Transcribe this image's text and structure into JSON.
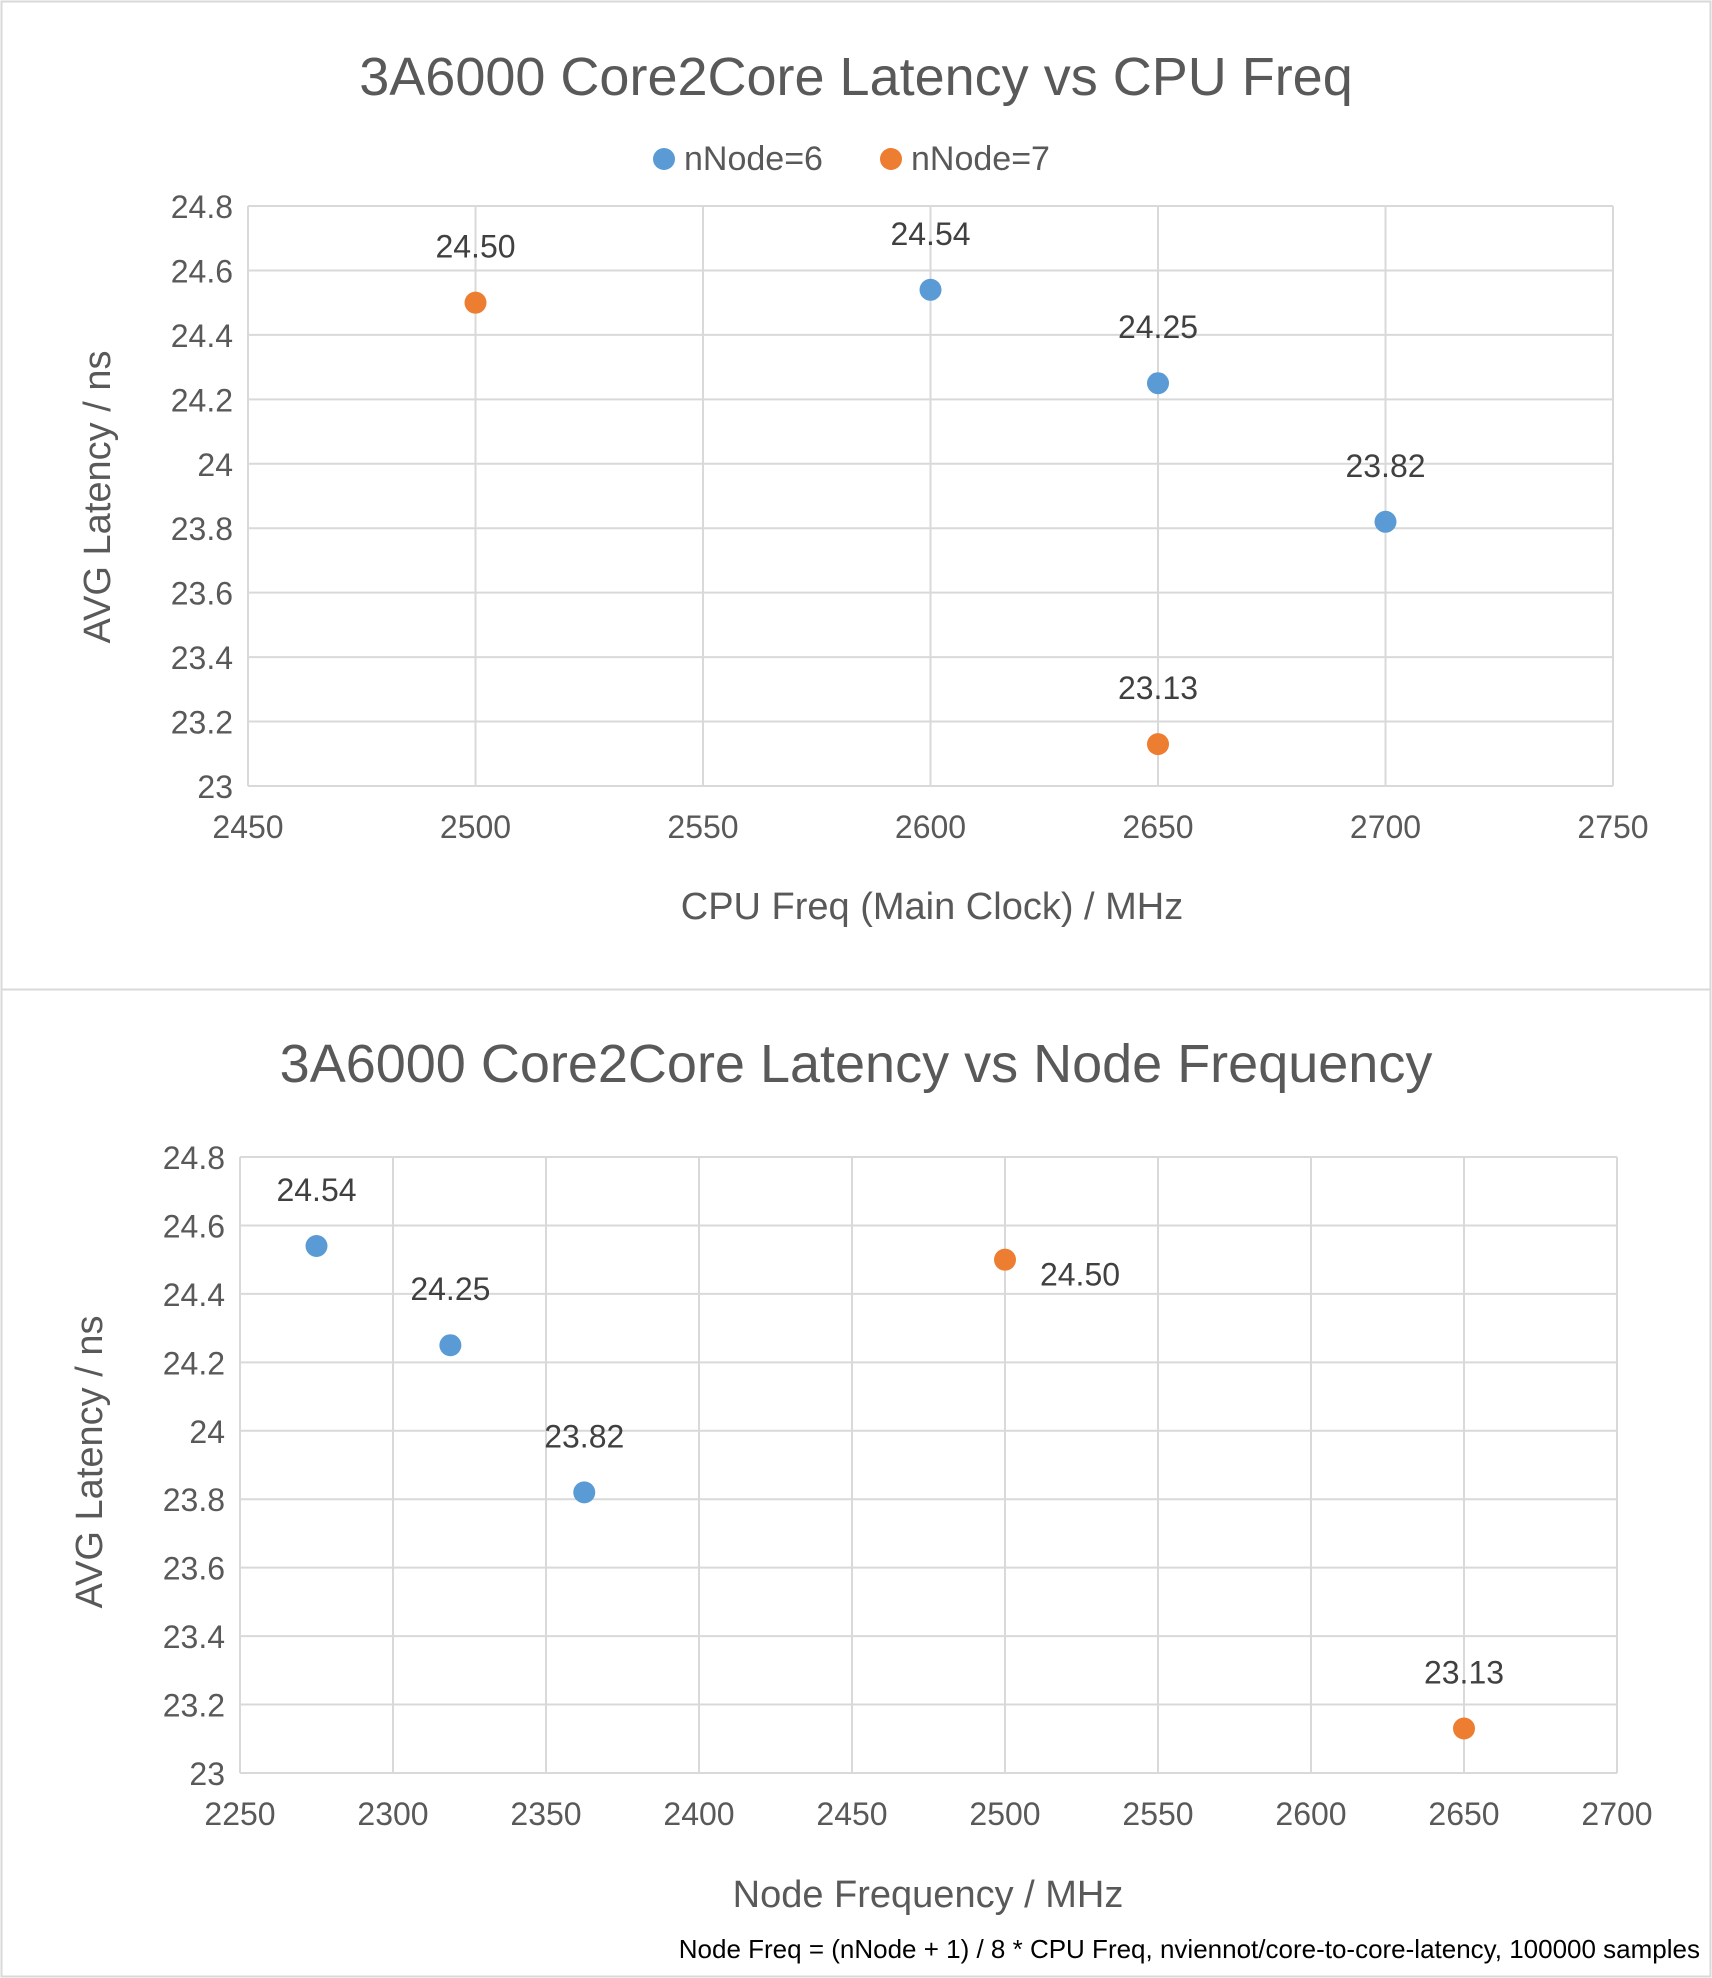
{
  "chart_data": [
    {
      "type": "scatter",
      "title": "3A6000 Core2Core Latency vs CPU Freq",
      "xlabel": "CPU Freq (Main Clock) / MHz",
      "ylabel": "AVG Latency / ns",
      "xlim": [
        2450,
        2750
      ],
      "ylim": [
        23,
        24.8
      ],
      "x_ticks": [
        "2450",
        "2500",
        "2550",
        "2600",
        "2650",
        "2700",
        "2750"
      ],
      "y_ticks": [
        "23",
        "23.2",
        "23.4",
        "23.6",
        "23.8",
        "24",
        "24.2",
        "24.4",
        "24.6",
        "24.8"
      ],
      "grid": "on",
      "legend": "top-center",
      "series": [
        {
          "name": "nNode=6",
          "color": "#5B9BD5",
          "points": [
            {
              "x": 2600,
              "y": 24.54,
              "label": "24.54"
            },
            {
              "x": 2650,
              "y": 24.25,
              "label": "24.25"
            },
            {
              "x": 2700,
              "y": 23.82,
              "label": "23.82"
            }
          ]
        },
        {
          "name": "nNode=7",
          "color": "#ED7D31",
          "points": [
            {
              "x": 2500,
              "y": 24.5,
              "label": "24.50"
            },
            {
              "x": 2650,
              "y": 23.13,
              "label": "23.13"
            }
          ]
        }
      ]
    },
    {
      "type": "scatter",
      "title": "3A6000 Core2Core Latency vs Node Frequency",
      "xlabel": "Node Frequency / MHz",
      "ylabel": "AVG Latency / ns",
      "xlim": [
        2250,
        2700
      ],
      "ylim": [
        23,
        24.8
      ],
      "x_ticks": [
        "2250",
        "2300",
        "2350",
        "2400",
        "2450",
        "2500",
        "2550",
        "2600",
        "2650",
        "2700"
      ],
      "y_ticks": [
        "23",
        "23.2",
        "23.4",
        "23.6",
        "23.8",
        "24",
        "24.2",
        "24.4",
        "24.6",
        "24.8"
      ],
      "grid": "on",
      "legend": "none",
      "series": [
        {
          "color": "#5B9BD5",
          "points": [
            {
              "x": 2275,
              "y": 24.54,
              "label": "24.54"
            },
            {
              "x": 2318.75,
              "y": 24.25,
              "label": "24.25"
            },
            {
              "x": 2362.5,
              "y": 23.82,
              "label": "23.82"
            }
          ]
        },
        {
          "color": "#ED7D31",
          "points": [
            {
              "x": 2500,
              "y": 24.5,
              "label": "24.50"
            },
            {
              "x": 2650,
              "y": 23.13,
              "label": "23.13"
            }
          ]
        }
      ]
    }
  ],
  "footnote": "Node Freq = (nNode + 1) / 8 * CPU Freq, nviennot/core-to-core-latency, 100000 samples"
}
